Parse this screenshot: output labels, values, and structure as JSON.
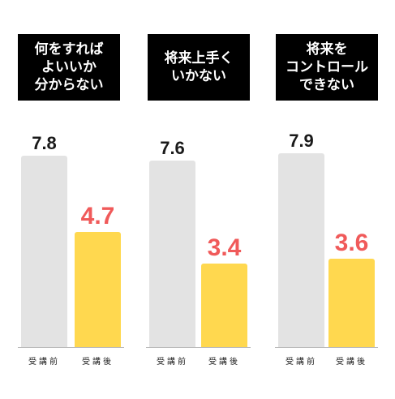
{
  "chart_data": [
    {
      "type": "bar",
      "title": "何をすれば\nよいいか\n分からない",
      "categories": [
        "受講前",
        "受講後"
      ],
      "values": [
        7.8,
        4.7
      ],
      "value_labels": [
        "7.8",
        "4.7"
      ]
    },
    {
      "type": "bar",
      "title": "将来上手く\nいかない",
      "categories": [
        "受講前",
        "受講後"
      ],
      "values": [
        7.6,
        3.4
      ],
      "value_labels": [
        "7.6",
        "3.4"
      ]
    },
    {
      "type": "bar",
      "title": "将来を\nコントロール\nできない",
      "categories": [
        "受講前",
        "受講後"
      ],
      "values": [
        7.9,
        3.6
      ],
      "value_labels": [
        "7.9",
        "3.6"
      ]
    }
  ],
  "colors": {
    "before_bar": "#e3e3e3",
    "after_bar": "#ffd84f",
    "after_value": "#f05a5a",
    "title_bg": "#000000"
  }
}
